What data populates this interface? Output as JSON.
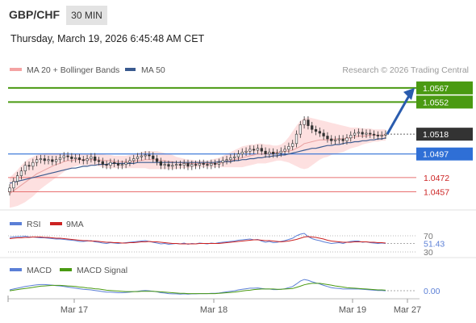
{
  "header": {
    "symbol": "GBP/CHF",
    "timeframe": "30 MIN",
    "timestamp": "Thursday, March 19, 2026 6:45:48 AM CET"
  },
  "legend": {
    "ma20": "MA 20 + Bollinger Bands",
    "ma50": "MA 50",
    "copyright": "Research © 2026 Trading Central",
    "rsi": "RSI",
    "rsi_ma": "9MA",
    "macd": "MACD",
    "macd_signal": "MACD Signal"
  },
  "colors": {
    "resistance": "#4a9a12",
    "support": "#e87070",
    "pivot": "#2f6fd6",
    "target_arrow": "#2a5cae",
    "current": "#333333",
    "bollinger_fill": "#fde0e0",
    "ma20": "#e8a0a0",
    "ma50": "#3a5a8f",
    "candle": "#333333",
    "rsi": "#5b7fd6",
    "rsi_ma": "#cc2222",
    "macd": "#5b7fd6",
    "macd_signal": "#4a9a12"
  },
  "chart_data": [
    {
      "type": "candlestick",
      "x_axis_labels": [
        "Mar 17",
        "Mar 18",
        "Mar 19",
        "Mar 27"
      ],
      "ylim": [
        1.0442,
        1.0578
      ],
      "levels": [
        {
          "label": "1.0567",
          "value": 1.0567,
          "kind": "resistance"
        },
        {
          "label": "1.0552",
          "value": 1.0552,
          "kind": "resistance"
        },
        {
          "label": "1.0518",
          "value": 1.0518,
          "kind": "current"
        },
        {
          "label": "1.0497",
          "value": 1.0497,
          "kind": "pivot"
        },
        {
          "label": "1.0472",
          "value": 1.0472,
          "kind": "support"
        },
        {
          "label": "1.0457",
          "value": 1.0457,
          "kind": "support"
        }
      ],
      "close": [
        1.0461,
        1.0468,
        1.0474,
        1.0479,
        1.0485,
        1.0484,
        1.0488,
        1.0491,
        1.0492,
        1.049,
        1.0491,
        1.0489,
        1.0491,
        1.0493,
        1.0495,
        1.0494,
        1.0492,
        1.0493,
        1.0491,
        1.049,
        1.0492,
        1.0494,
        1.049,
        1.0489,
        1.0486,
        1.0485,
        1.0488,
        1.0487,
        1.0485,
        1.0486,
        1.0488,
        1.049,
        1.0492,
        1.0494,
        1.0495,
        1.0496,
        1.0495,
        1.0492,
        1.0489,
        1.0485,
        1.0486,
        1.0484,
        1.0485,
        1.0486,
        1.0485,
        1.0487,
        1.0484,
        1.0486,
        1.0485,
        1.0487,
        1.0486,
        1.0485,
        1.0487,
        1.0486,
        1.0488,
        1.049,
        1.0491,
        1.0493,
        1.0494,
        1.0497,
        1.0499,
        1.05,
        1.0502,
        1.0501,
        1.0503,
        1.05,
        1.0497,
        1.0499,
        1.0497,
        1.0498,
        1.05,
        1.0502,
        1.0505,
        1.0508,
        1.0518,
        1.0528,
        1.0533,
        1.0527,
        1.0523,
        1.0521,
        1.0519,
        1.0516,
        1.0513,
        1.0511,
        1.0512,
        1.0513,
        1.0511,
        1.0514,
        1.0517,
        1.0519,
        1.052,
        1.0518,
        1.0519,
        1.0518,
        1.0517,
        1.0516,
        1.0517,
        1.0518
      ],
      "ma20": [
        1.0455,
        1.0458,
        1.0461,
        1.0464,
        1.0467,
        1.047,
        1.0473,
        1.0476,
        1.0478,
        1.048,
        1.0482,
        1.0484,
        1.0486,
        1.0487,
        1.0489,
        1.049,
        1.049,
        1.0491,
        1.0491,
        1.0491,
        1.0491,
        1.0491,
        1.0491,
        1.0491,
        1.049,
        1.049,
        1.049,
        1.0489,
        1.0489,
        1.0489,
        1.0489,
        1.0489,
        1.0489,
        1.049,
        1.049,
        1.0491,
        1.0491,
        1.0491,
        1.0491,
        1.049,
        1.049,
        1.0489,
        1.0489,
        1.0488,
        1.0488,
        1.0487,
        1.0487,
        1.0487,
        1.0487,
        1.0487,
        1.0487,
        1.0487,
        1.0487,
        1.0487,
        1.0487,
        1.0488,
        1.0489,
        1.049,
        1.0491,
        1.0492,
        1.0493,
        1.0494,
        1.0495,
        1.0496,
        1.0497,
        1.0497,
        1.0497,
        1.0498,
        1.0498,
        1.0499,
        1.0499,
        1.05,
        1.05,
        1.0501,
        1.0503,
        1.0505,
        1.0508,
        1.0509,
        1.051,
        1.0511,
        1.0512,
        1.0512,
        1.0512,
        1.0512,
        1.0513,
        1.0513,
        1.0513,
        1.0514,
        1.0514,
        1.0515,
        1.0516,
        1.0516,
        1.0516,
        1.0517,
        1.0517,
        1.0517,
        1.0517,
        1.0517
      ],
      "bollinger_upper": [
        1.0472,
        1.0476,
        1.048,
        1.0485,
        1.0489,
        1.0492,
        1.0494,
        1.0496,
        1.0497,
        1.0498,
        1.0498,
        1.0498,
        1.0498,
        1.0498,
        1.0498,
        1.0497,
        1.0497,
        1.0497,
        1.0497,
        1.0497,
        1.0497,
        1.0497,
        1.0497,
        1.0497,
        1.0497,
        1.0496,
        1.0496,
        1.0495,
        1.0495,
        1.0495,
        1.0495,
        1.0496,
        1.0497,
        1.0498,
        1.0499,
        1.05,
        1.05,
        1.05,
        1.05,
        1.0499,
        1.0498,
        1.0497,
        1.0496,
        1.0494,
        1.0493,
        1.0492,
        1.0491,
        1.0491,
        1.049,
        1.049,
        1.049,
        1.049,
        1.0491,
        1.0492,
        1.0493,
        1.0495,
        1.0497,
        1.0499,
        1.0501,
        1.0503,
        1.0505,
        1.0506,
        1.0507,
        1.0507,
        1.0508,
        1.0508,
        1.0507,
        1.0507,
        1.0506,
        1.0506,
        1.0507,
        1.051,
        1.0515,
        1.0521,
        1.0527,
        1.0532,
        1.0535,
        1.0536,
        1.0535,
        1.0534,
        1.0533,
        1.0532,
        1.0531,
        1.053,
        1.0529,
        1.0528,
        1.0527,
        1.0526,
        1.0525,
        1.0525,
        1.0525,
        1.0524,
        1.0524,
        1.0524,
        1.0523,
        1.0523,
        1.0523,
        1.0523
      ],
      "bollinger_lower": [
        1.044,
        1.0441,
        1.0442,
        1.0444,
        1.0446,
        1.0449,
        1.0452,
        1.0456,
        1.046,
        1.0463,
        1.0466,
        1.0469,
        1.0472,
        1.0475,
        1.0478,
        1.0481,
        1.0483,
        1.0484,
        1.0485,
        1.0485,
        1.0485,
        1.0485,
        1.0485,
        1.0484,
        1.0483,
        1.0482,
        1.0482,
        1.0482,
        1.0482,
        1.0482,
        1.0482,
        1.0482,
        1.0482,
        1.0482,
        1.0482,
        1.0482,
        1.0481,
        1.0481,
        1.0481,
        1.0481,
        1.0481,
        1.0481,
        1.0481,
        1.0481,
        1.0482,
        1.0482,
        1.0482,
        1.0483,
        1.0483,
        1.0483,
        1.0483,
        1.0483,
        1.0483,
        1.0483,
        1.0483,
        1.0483,
        1.0483,
        1.0483,
        1.0483,
        1.0483,
        1.0483,
        1.0484,
        1.0485,
        1.0486,
        1.0487,
        1.0487,
        1.0487,
        1.0488,
        1.0489,
        1.049,
        1.049,
        1.0489,
        1.0488,
        1.0486,
        1.0484,
        1.0482,
        1.0481,
        1.0482,
        1.0485,
        1.0488,
        1.0491,
        1.0493,
        1.0494,
        1.0496,
        1.0497,
        1.0498,
        1.0499,
        1.0501,
        1.0503,
        1.0504,
        1.0505,
        1.0507,
        1.0508,
        1.0509,
        1.051,
        1.051,
        1.0511,
        1.0511
      ],
      "ma50": [
        1.0466,
        1.0467,
        1.0468,
        1.0469,
        1.047,
        1.0471,
        1.0472,
        1.0473,
        1.0474,
        1.0475,
        1.0476,
        1.0477,
        1.0478,
        1.0479,
        1.048,
        1.0481,
        1.0482,
        1.0482,
        1.0483,
        1.0484,
        1.0484,
        1.0485,
        1.0485,
        1.0486,
        1.0486,
        1.0486,
        1.0487,
        1.0487,
        1.0487,
        1.0487,
        1.0487,
        1.0487,
        1.0487,
        1.0488,
        1.0488,
        1.0488,
        1.0488,
        1.0488,
        1.0488,
        1.0488,
        1.0488,
        1.0488,
        1.0488,
        1.0488,
        1.0488,
        1.0488,
        1.0488,
        1.0488,
        1.0488,
        1.0488,
        1.0488,
        1.0488,
        1.0488,
        1.0488,
        1.0489,
        1.0489,
        1.0489,
        1.0489,
        1.049,
        1.049,
        1.0491,
        1.0491,
        1.0492,
        1.0492,
        1.0493,
        1.0493,
        1.0494,
        1.0494,
        1.0495,
        1.0495,
        1.0496,
        1.0496,
        1.0497,
        1.0498,
        1.0499,
        1.05,
        1.0501,
        1.0502,
        1.0503,
        1.0503,
        1.0504,
        1.0505,
        1.0506,
        1.0506,
        1.0507,
        1.0507,
        1.0508,
        1.0509,
        1.0509,
        1.051,
        1.051,
        1.0511,
        1.0511,
        1.0512,
        1.0512,
        1.0513,
        1.0513,
        1.0514
      ],
      "target": 1.0567
    },
    {
      "type": "line",
      "title": "RSI",
      "ylim": [
        30,
        70
      ],
      "levels": [
        70,
        30
      ],
      "last_value_label": "51.43",
      "series": [
        {
          "name": "RSI",
          "values": [
            66,
            67,
            68,
            68,
            69,
            67,
            67,
            66,
            65,
            65,
            64,
            63,
            62,
            62,
            61,
            60,
            59,
            58,
            56,
            56,
            57,
            58,
            55,
            54,
            52,
            51,
            53,
            52,
            51,
            52,
            53,
            54,
            55,
            56,
            57,
            58,
            56,
            54,
            52,
            50,
            51,
            49,
            50,
            51,
            50,
            52,
            49,
            51,
            50,
            52,
            51,
            50,
            52,
            51,
            53,
            54,
            55,
            56,
            57,
            59,
            60,
            61,
            62,
            60,
            61,
            57,
            54,
            56,
            53,
            54,
            56,
            58,
            61,
            64,
            70,
            74,
            76,
            68,
            63,
            60,
            58,
            55,
            53,
            51,
            52,
            53,
            51,
            54,
            56,
            57,
            57,
            54,
            55,
            53,
            52,
            51,
            52,
            51
          ]
        },
        {
          "name": "9MA",
          "values": [
            63,
            64,
            65,
            65,
            66,
            66,
            67,
            67,
            67,
            66,
            66,
            65,
            64,
            64,
            63,
            62,
            61,
            60,
            59,
            58,
            58,
            57,
            57,
            56,
            55,
            54,
            54,
            53,
            53,
            52,
            52,
            53,
            53,
            54,
            55,
            55,
            56,
            55,
            55,
            54,
            53,
            52,
            51,
            51,
            50,
            50,
            50,
            50,
            50,
            51,
            51,
            51,
            51,
            51,
            51,
            52,
            53,
            54,
            55,
            56,
            57,
            58,
            59,
            60,
            60,
            59,
            58,
            58,
            57,
            56,
            55,
            56,
            57,
            59,
            61,
            64,
            67,
            68,
            67,
            66,
            64,
            62,
            59,
            57,
            56,
            55,
            54,
            54,
            54,
            55,
            55,
            55,
            55,
            54,
            54,
            53,
            53,
            52
          ]
        }
      ]
    },
    {
      "type": "line",
      "title": "MACD",
      "last_value_label": "0.00",
      "series": [
        {
          "name": "MACD",
          "values": [
            0.5,
            0.8,
            1.1,
            1.4,
            1.7,
            1.9,
            2.1,
            2.3,
            2.4,
            2.4,
            2.3,
            2.2,
            2.0,
            1.9,
            1.7,
            1.5,
            1.3,
            1.1,
            0.9,
            0.7,
            0.6,
            0.5,
            0.3,
            0.1,
            -0.1,
            -0.3,
            -0.3,
            -0.4,
            -0.5,
            -0.5,
            -0.4,
            -0.3,
            -0.1,
            0.0,
            0.2,
            0.3,
            0.2,
            0.0,
            -0.2,
            -0.5,
            -0.6,
            -0.8,
            -0.9,
            -0.9,
            -1.0,
            -0.9,
            -1.0,
            -0.9,
            -0.9,
            -0.8,
            -0.8,
            -0.8,
            -0.7,
            -0.7,
            -0.6,
            -0.4,
            -0.2,
            0.0,
            0.2,
            0.5,
            0.7,
            0.9,
            1.1,
            1.1,
            1.2,
            1.0,
            0.8,
            0.8,
            0.6,
            0.6,
            0.7,
            0.9,
            1.3,
            1.7,
            2.6,
            3.6,
            4.2,
            3.9,
            3.4,
            3.0,
            2.6,
            2.1,
            1.7,
            1.3,
            1.1,
            1.0,
            0.8,
            0.8,
            0.8,
            0.8,
            0.8,
            0.7,
            0.6,
            0.5,
            0.4,
            0.3,
            0.3,
            0.2
          ]
        },
        {
          "name": "MACD Signal",
          "values": [
            0.2,
            0.4,
            0.6,
            0.8,
            1.0,
            1.2,
            1.4,
            1.6,
            1.8,
            1.9,
            2.0,
            2.1,
            2.1,
            2.1,
            2.0,
            1.9,
            1.8,
            1.7,
            1.5,
            1.4,
            1.2,
            1.1,
            0.9,
            0.8,
            0.6,
            0.4,
            0.3,
            0.2,
            0.1,
            0.0,
            -0.1,
            -0.1,
            -0.1,
            -0.1,
            0.0,
            0.0,
            0.0,
            0.0,
            -0.1,
            -0.2,
            -0.3,
            -0.4,
            -0.5,
            -0.6,
            -0.7,
            -0.7,
            -0.8,
            -0.8,
            -0.8,
            -0.8,
            -0.8,
            -0.8,
            -0.8,
            -0.8,
            -0.7,
            -0.6,
            -0.5,
            -0.4,
            -0.3,
            -0.1,
            0.1,
            0.3,
            0.4,
            0.6,
            0.7,
            0.8,
            0.8,
            0.8,
            0.8,
            0.7,
            0.7,
            0.8,
            0.9,
            1.0,
            1.4,
            1.8,
            2.3,
            2.6,
            2.8,
            2.8,
            2.8,
            2.6,
            2.4,
            2.2,
            1.9,
            1.7,
            1.5,
            1.3,
            1.2,
            1.1,
            1.0,
            0.9,
            0.8,
            0.7,
            0.6,
            0.5,
            0.5,
            0.4
          ]
        }
      ]
    }
  ]
}
